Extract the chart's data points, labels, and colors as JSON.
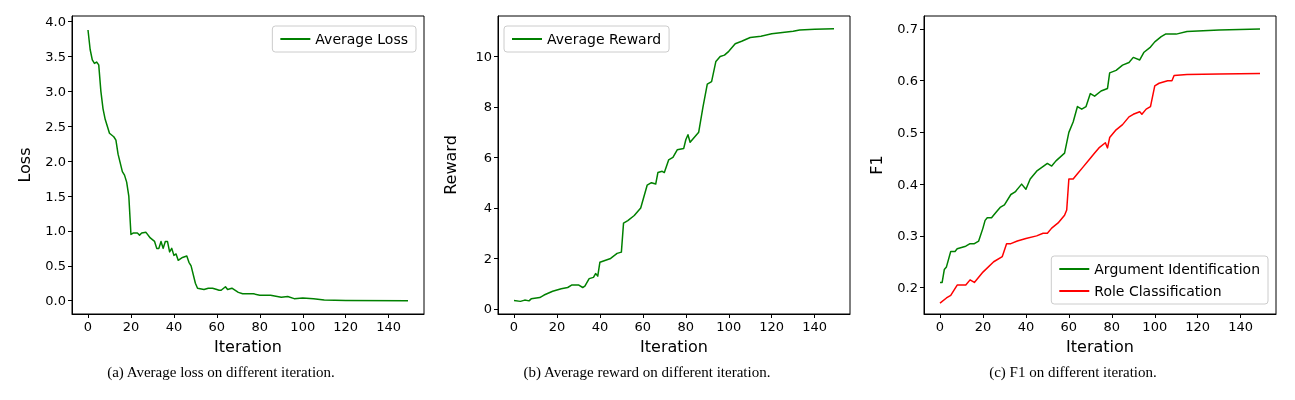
{
  "chart_data": [
    {
      "type": "line",
      "xlabel": "Iteration",
      "ylabel": "Loss",
      "annotations": [
        "(a)  Average loss on different iteration."
      ],
      "legend": "top right",
      "grid": false,
      "marker": "none",
      "line_style": "solid",
      "xlim": [
        -7.45,
        156.45
      ],
      "xticks": [
        0,
        20,
        40,
        60,
        80,
        100,
        120,
        140
      ],
      "ylim": [
        -0.19,
        4.08
      ],
      "yticks": [
        {
          "value": 0,
          "label": "0.0"
        },
        0.5,
        {
          "value": 1,
          "label": "1.0"
        },
        1.5,
        {
          "value": 2,
          "label": "2.0"
        },
        2.5,
        {
          "value": 3,
          "label": "3.0"
        },
        3.5,
        {
          "value": 4,
          "label": "4.0"
        }
      ],
      "series": [
        {
          "name": "Average Loss",
          "color": "#008000",
          "x": [
            0,
            1,
            2,
            3,
            4,
            5,
            6,
            7,
            8,
            10,
            12,
            13,
            14,
            16,
            17,
            18,
            19,
            20,
            21,
            23,
            24,
            25,
            27,
            29,
            31,
            32,
            33,
            34,
            35,
            36,
            37,
            38,
            39,
            40,
            41,
            42,
            44,
            46,
            47,
            48,
            50,
            51,
            54,
            56,
            58,
            60,
            61,
            62,
            64,
            65,
            67,
            70,
            72,
            77,
            80,
            85,
            90,
            93,
            96,
            100,
            105,
            110,
            120,
            149
          ],
          "values": [
            3.88,
            3.6,
            3.45,
            3.4,
            3.42,
            3.38,
            3.0,
            2.75,
            2.6,
            2.4,
            2.35,
            2.3,
            2.1,
            1.85,
            1.8,
            1.7,
            1.5,
            0.95,
            0.97,
            0.97,
            0.94,
            0.97,
            0.98,
            0.9,
            0.85,
            0.75,
            0.75,
            0.85,
            0.75,
            0.85,
            0.85,
            0.7,
            0.75,
            0.65,
            0.67,
            0.58,
            0.62,
            0.64,
            0.55,
            0.5,
            0.25,
            0.18,
            0.16,
            0.18,
            0.18,
            0.16,
            0.15,
            0.15,
            0.2,
            0.16,
            0.18,
            0.12,
            0.1,
            0.1,
            0.08,
            0.08,
            0.05,
            0.06,
            0.03,
            0.04,
            0.03,
            0.01,
            0.005,
            0.0
          ]
        }
      ]
    },
    {
      "type": "line",
      "xlabel": "Iteration",
      "ylabel": "Reward",
      "annotations": [
        "(b)  Average reward on different iteration."
      ],
      "legend": "top left",
      "grid": false,
      "marker": "none",
      "line_style": "solid",
      "xlim": [
        -7.45,
        156.45
      ],
      "xticks": [
        0,
        20,
        40,
        60,
        80,
        100,
        120,
        140
      ],
      "ylim": [
        -0.2,
        11.6
      ],
      "yticks": [
        0,
        2,
        4,
        6,
        8,
        10
      ],
      "series": [
        {
          "name": "Average Reward",
          "color": "#008000",
          "x": [
            0,
            3,
            5,
            7,
            8,
            12,
            14,
            18,
            22,
            25,
            27,
            30,
            32,
            33,
            35,
            37,
            38,
            39,
            40,
            45,
            48,
            50,
            51,
            53,
            56,
            59,
            62,
            64,
            66,
            67,
            69,
            70,
            72,
            74,
            76,
            79,
            80,
            81,
            82,
            84,
            86,
            88,
            90,
            92,
            94,
            96,
            98,
            100,
            103,
            106,
            110,
            115,
            120,
            125,
            130,
            133,
            140,
            149
          ],
          "values": [
            0.33,
            0.3,
            0.35,
            0.32,
            0.4,
            0.45,
            0.55,
            0.7,
            0.8,
            0.85,
            0.95,
            0.95,
            0.85,
            0.9,
            1.2,
            1.25,
            1.4,
            1.3,
            1.85,
            2.0,
            2.2,
            2.25,
            3.4,
            3.5,
            3.7,
            4.0,
            4.9,
            5.0,
            4.95,
            5.4,
            5.45,
            5.4,
            5.9,
            6.0,
            6.3,
            6.35,
            6.7,
            6.9,
            6.6,
            6.8,
            7.0,
            8.0,
            8.9,
            9.0,
            9.8,
            10.0,
            10.05,
            10.2,
            10.5,
            10.6,
            10.75,
            10.8,
            10.9,
            10.95,
            11.0,
            11.05,
            11.08,
            11.1
          ]
        }
      ]
    },
    {
      "type": "line",
      "xlabel": "Iteration",
      "ylabel": "F1",
      "annotations": [
        "(c)  F1 on different iteration."
      ],
      "legend": "bottom right",
      "grid": false,
      "marker": "none",
      "line_style": "solid",
      "xlim": [
        -7.45,
        156.45
      ],
      "xticks": [
        0,
        20,
        40,
        60,
        80,
        100,
        120,
        140
      ],
      "ylim": [
        0.149,
        0.725
      ],
      "yticks": [
        0.2,
        0.3,
        0.4,
        0.5,
        0.6,
        0.7
      ],
      "series": [
        {
          "name": "Argument Identification",
          "color": "#008000",
          "x": [
            0,
            1,
            2,
            3,
            5,
            7,
            8,
            12,
            14,
            16,
            18,
            20,
            21,
            22,
            24,
            26,
            28,
            30,
            33,
            35,
            38,
            40,
            42,
            45,
            50,
            52,
            54,
            58,
            60,
            62,
            64,
            66,
            68,
            70,
            72,
            75,
            78,
            79,
            82,
            85,
            88,
            90,
            93,
            95,
            98,
            100,
            103,
            105,
            110,
            115,
            130,
            149
          ],
          "values": [
            0.21,
            0.21,
            0.235,
            0.24,
            0.27,
            0.27,
            0.275,
            0.28,
            0.285,
            0.285,
            0.29,
            0.315,
            0.33,
            0.335,
            0.335,
            0.345,
            0.355,
            0.36,
            0.38,
            0.385,
            0.4,
            0.39,
            0.41,
            0.425,
            0.44,
            0.435,
            0.445,
            0.46,
            0.5,
            0.52,
            0.55,
            0.545,
            0.55,
            0.575,
            0.57,
            0.58,
            0.585,
            0.615,
            0.62,
            0.63,
            0.635,
            0.645,
            0.64,
            0.655,
            0.665,
            0.675,
            0.685,
            0.69,
            0.69,
            0.695,
            0.698,
            0.7
          ]
        },
        {
          "name": "Role Classification",
          "color": "#ff0000",
          "x": [
            0,
            3,
            5,
            8,
            12,
            14,
            16,
            20,
            25,
            29,
            31,
            33,
            36,
            40,
            45,
            48,
            50,
            52,
            55,
            58,
            59,
            60,
            62,
            64,
            66,
            70,
            72,
            74,
            77,
            78,
            79,
            82,
            85,
            88,
            90,
            93,
            94,
            96,
            98,
            100,
            102,
            106,
            108,
            109,
            115,
            130,
            149
          ],
          "values": [
            0.17,
            0.18,
            0.185,
            0.205,
            0.205,
            0.215,
            0.21,
            0.23,
            0.25,
            0.26,
            0.285,
            0.285,
            0.29,
            0.295,
            0.3,
            0.305,
            0.305,
            0.315,
            0.325,
            0.34,
            0.35,
            0.41,
            0.41,
            0.42,
            0.43,
            0.45,
            0.46,
            0.47,
            0.48,
            0.47,
            0.49,
            0.505,
            0.515,
            0.53,
            0.535,
            0.54,
            0.535,
            0.545,
            0.55,
            0.59,
            0.595,
            0.6,
            0.6,
            0.61,
            0.612,
            0.613,
            0.614
          ]
        }
      ]
    }
  ]
}
